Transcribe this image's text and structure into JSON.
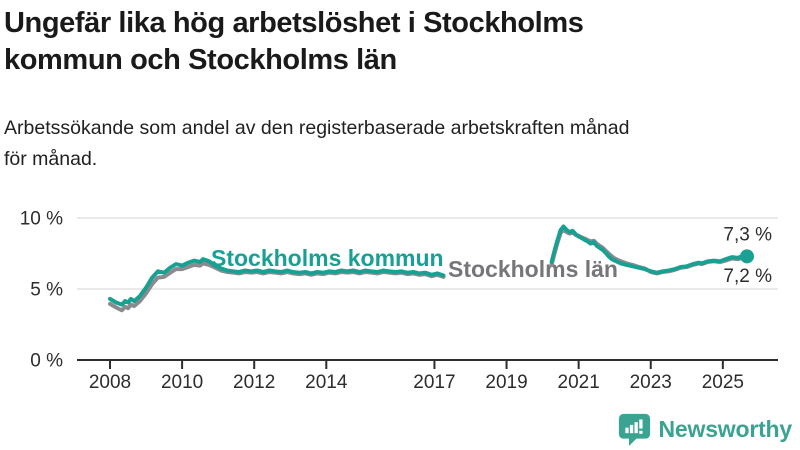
{
  "header": {
    "title_lines": [
      "Ungefär lika hög arbetslöshet i Stockholms",
      "kommun och Stockholms län"
    ],
    "subtitle_lines": [
      "Arbetssökande som andel av den registerbaserade arbetskraften månad",
      "för månad."
    ]
  },
  "chart_data": {
    "type": "line",
    "unit": "%",
    "grid": "horizontal-only",
    "legend_position": "inline-labels",
    "x_axis": {
      "ticks": [
        2008,
        2010,
        2012,
        2014,
        2017,
        2019,
        2021,
        2023,
        2025
      ],
      "range": [
        2007.1,
        2026.5
      ]
    },
    "y_axis": {
      "ticks": [
        {
          "value": 0,
          "label": "0 %"
        },
        {
          "value": 5,
          "label": "5 %"
        },
        {
          "value": 10,
          "label": "10 %"
        }
      ],
      "range": [
        0,
        10.6
      ]
    },
    "axis_color": "#2d2d2d",
    "gridline_color": "#e2e2e2",
    "series": [
      {
        "name": "Stockholms län",
        "color": "#8a8b8f",
        "label_color": "#75757a",
        "label_pos": {
          "x": 448,
          "y": 277
        },
        "end_value": 7.2,
        "end_label": "7,2 %",
        "end_label_offset": 24,
        "end_dot_r": 5.5,
        "segments": [
          [
            [
              2008.0,
              3.95
            ],
            [
              2008.17,
              3.7
            ],
            [
              2008.33,
              3.5
            ],
            [
              2008.42,
              3.75
            ],
            [
              2008.5,
              3.65
            ],
            [
              2008.58,
              3.9
            ],
            [
              2008.67,
              3.8
            ],
            [
              2008.83,
              4.15
            ],
            [
              2009.0,
              4.7
            ],
            [
              2009.17,
              5.35
            ],
            [
              2009.33,
              5.8
            ],
            [
              2009.5,
              5.85
            ],
            [
              2009.67,
              6.15
            ],
            [
              2009.83,
              6.4
            ],
            [
              2010.0,
              6.4
            ],
            [
              2010.17,
              6.55
            ],
            [
              2010.33,
              6.7
            ],
            [
              2010.5,
              6.65
            ],
            [
              2010.58,
              6.8
            ],
            [
              2010.75,
              6.7
            ],
            [
              2010.92,
              6.5
            ],
            [
              2011.08,
              6.3
            ],
            [
              2011.25,
              6.2
            ],
            [
              2011.42,
              6.15
            ],
            [
              2011.58,
              6.1
            ],
            [
              2011.75,
              6.2
            ],
            [
              2011.92,
              6.15
            ],
            [
              2012.08,
              6.2
            ],
            [
              2012.25,
              6.1
            ],
            [
              2012.42,
              6.2
            ],
            [
              2012.58,
              6.15
            ],
            [
              2012.75,
              6.1
            ],
            [
              2012.92,
              6.2
            ],
            [
              2013.08,
              6.1
            ],
            [
              2013.25,
              6.05
            ],
            [
              2013.42,
              6.1
            ],
            [
              2013.58,
              6.0
            ],
            [
              2013.75,
              6.1
            ],
            [
              2013.92,
              6.05
            ],
            [
              2014.08,
              6.15
            ],
            [
              2014.25,
              6.1
            ],
            [
              2014.42,
              6.2
            ],
            [
              2014.58,
              6.15
            ],
            [
              2014.75,
              6.2
            ],
            [
              2014.92,
              6.1
            ],
            [
              2015.08,
              6.2
            ],
            [
              2015.25,
              6.15
            ],
            [
              2015.42,
              6.1
            ],
            [
              2015.58,
              6.2
            ],
            [
              2015.75,
              6.15
            ],
            [
              2015.92,
              6.1
            ],
            [
              2016.08,
              6.15
            ],
            [
              2016.25,
              6.05
            ],
            [
              2016.42,
              6.1
            ],
            [
              2016.58,
              6.0
            ],
            [
              2016.75,
              6.05
            ],
            [
              2016.92,
              5.9
            ],
            [
              2017.08,
              6.0
            ],
            [
              2017.25,
              5.85
            ]
          ],
          [
            [
              2020.25,
              6.7
            ],
            [
              2020.33,
              7.5
            ],
            [
              2020.42,
              8.3
            ],
            [
              2020.5,
              8.95
            ],
            [
              2020.58,
              9.15
            ],
            [
              2020.67,
              9.0
            ],
            [
              2020.75,
              8.9
            ],
            [
              2020.83,
              9.0
            ],
            [
              2020.92,
              8.8
            ],
            [
              2021.0,
              8.75
            ],
            [
              2021.08,
              8.65
            ],
            [
              2021.17,
              8.55
            ],
            [
              2021.25,
              8.45
            ],
            [
              2021.33,
              8.35
            ],
            [
              2021.42,
              8.4
            ],
            [
              2021.5,
              8.2
            ],
            [
              2021.58,
              8.05
            ],
            [
              2021.67,
              7.9
            ],
            [
              2021.75,
              7.7
            ],
            [
              2021.83,
              7.5
            ],
            [
              2021.92,
              7.3
            ],
            [
              2022.0,
              7.15
            ],
            [
              2022.17,
              6.95
            ],
            [
              2022.33,
              6.8
            ],
            [
              2022.5,
              6.7
            ],
            [
              2022.67,
              6.55
            ],
            [
              2022.83,
              6.45
            ],
            [
              2023.0,
              6.2
            ],
            [
              2023.17,
              6.1
            ],
            [
              2023.33,
              6.2
            ],
            [
              2023.5,
              6.25
            ],
            [
              2023.67,
              6.35
            ],
            [
              2023.83,
              6.5
            ],
            [
              2024.0,
              6.55
            ],
            [
              2024.17,
              6.7
            ],
            [
              2024.33,
              6.8
            ],
            [
              2024.42,
              6.75
            ],
            [
              2024.58,
              6.9
            ],
            [
              2024.75,
              6.95
            ],
            [
              2024.92,
              6.9
            ],
            [
              2025.08,
              7.0
            ],
            [
              2025.25,
              7.15
            ],
            [
              2025.42,
              7.1
            ],
            [
              2025.58,
              7.25
            ],
            [
              2025.67,
              7.2
            ]
          ]
        ]
      },
      {
        "name": "Stockholms kommun",
        "color": "#18a192",
        "label_color": "#18a192",
        "label_pos": {
          "x": 211,
          "y": 266
        },
        "end_value": 7.3,
        "end_label": "7,3 %",
        "end_label_offset": -16,
        "end_dot_r": 7,
        "segments": [
          [
            [
              2008.0,
              4.3
            ],
            [
              2008.17,
              4.05
            ],
            [
              2008.33,
              3.9
            ],
            [
              2008.42,
              4.15
            ],
            [
              2008.5,
              4.05
            ],
            [
              2008.58,
              4.3
            ],
            [
              2008.67,
              4.15
            ],
            [
              2008.83,
              4.5
            ],
            [
              2009.0,
              5.1
            ],
            [
              2009.17,
              5.8
            ],
            [
              2009.33,
              6.25
            ],
            [
              2009.5,
              6.15
            ],
            [
              2009.67,
              6.5
            ],
            [
              2009.83,
              6.75
            ],
            [
              2010.0,
              6.65
            ],
            [
              2010.17,
              6.85
            ],
            [
              2010.33,
              7.0
            ],
            [
              2010.5,
              6.9
            ],
            [
              2010.58,
              7.1
            ],
            [
              2010.75,
              6.95
            ],
            [
              2010.92,
              6.65
            ],
            [
              2011.08,
              6.45
            ],
            [
              2011.25,
              6.3
            ],
            [
              2011.42,
              6.25
            ],
            [
              2011.58,
              6.2
            ],
            [
              2011.75,
              6.3
            ],
            [
              2011.92,
              6.25
            ],
            [
              2012.08,
              6.3
            ],
            [
              2012.25,
              6.2
            ],
            [
              2012.42,
              6.3
            ],
            [
              2012.58,
              6.25
            ],
            [
              2012.75,
              6.2
            ],
            [
              2012.92,
              6.3
            ],
            [
              2013.08,
              6.2
            ],
            [
              2013.25,
              6.15
            ],
            [
              2013.42,
              6.2
            ],
            [
              2013.58,
              6.1
            ],
            [
              2013.75,
              6.2
            ],
            [
              2013.92,
              6.15
            ],
            [
              2014.08,
              6.25
            ],
            [
              2014.25,
              6.2
            ],
            [
              2014.42,
              6.3
            ],
            [
              2014.58,
              6.25
            ],
            [
              2014.75,
              6.3
            ],
            [
              2014.92,
              6.2
            ],
            [
              2015.08,
              6.3
            ],
            [
              2015.25,
              6.25
            ],
            [
              2015.42,
              6.2
            ],
            [
              2015.58,
              6.3
            ],
            [
              2015.75,
              6.25
            ],
            [
              2015.92,
              6.2
            ],
            [
              2016.08,
              6.25
            ],
            [
              2016.25,
              6.15
            ],
            [
              2016.42,
              6.2
            ],
            [
              2016.58,
              6.1
            ],
            [
              2016.75,
              6.15
            ],
            [
              2016.92,
              6.0
            ],
            [
              2017.08,
              6.1
            ],
            [
              2017.25,
              5.95
            ]
          ],
          [
            [
              2020.25,
              6.9
            ],
            [
              2020.33,
              7.7
            ],
            [
              2020.42,
              8.5
            ],
            [
              2020.5,
              9.15
            ],
            [
              2020.58,
              9.4
            ],
            [
              2020.67,
              9.15
            ],
            [
              2020.75,
              9.0
            ],
            [
              2020.83,
              9.1
            ],
            [
              2020.92,
              8.85
            ],
            [
              2021.0,
              8.7
            ],
            [
              2021.08,
              8.6
            ],
            [
              2021.17,
              8.45
            ],
            [
              2021.25,
              8.35
            ],
            [
              2021.33,
              8.2
            ],
            [
              2021.42,
              8.3
            ],
            [
              2021.5,
              8.05
            ],
            [
              2021.58,
              7.9
            ],
            [
              2021.67,
              7.75
            ],
            [
              2021.75,
              7.55
            ],
            [
              2021.83,
              7.3
            ],
            [
              2021.92,
              7.1
            ],
            [
              2022.0,
              7.0
            ],
            [
              2022.17,
              6.8
            ],
            [
              2022.33,
              6.7
            ],
            [
              2022.5,
              6.6
            ],
            [
              2022.67,
              6.5
            ],
            [
              2022.83,
              6.4
            ],
            [
              2023.0,
              6.25
            ],
            [
              2023.17,
              6.15
            ],
            [
              2023.33,
              6.25
            ],
            [
              2023.5,
              6.3
            ],
            [
              2023.67,
              6.4
            ],
            [
              2023.83,
              6.55
            ],
            [
              2024.0,
              6.6
            ],
            [
              2024.17,
              6.75
            ],
            [
              2024.33,
              6.85
            ],
            [
              2024.42,
              6.8
            ],
            [
              2024.58,
              6.95
            ],
            [
              2024.75,
              7.0
            ],
            [
              2024.92,
              6.95
            ],
            [
              2025.08,
              7.1
            ],
            [
              2025.25,
              7.25
            ],
            [
              2025.42,
              7.2
            ],
            [
              2025.58,
              7.35
            ],
            [
              2025.67,
              7.3
            ]
          ]
        ]
      }
    ]
  },
  "footer": {
    "brand": "Newsworthy",
    "brand_color": "#3aa392"
  }
}
